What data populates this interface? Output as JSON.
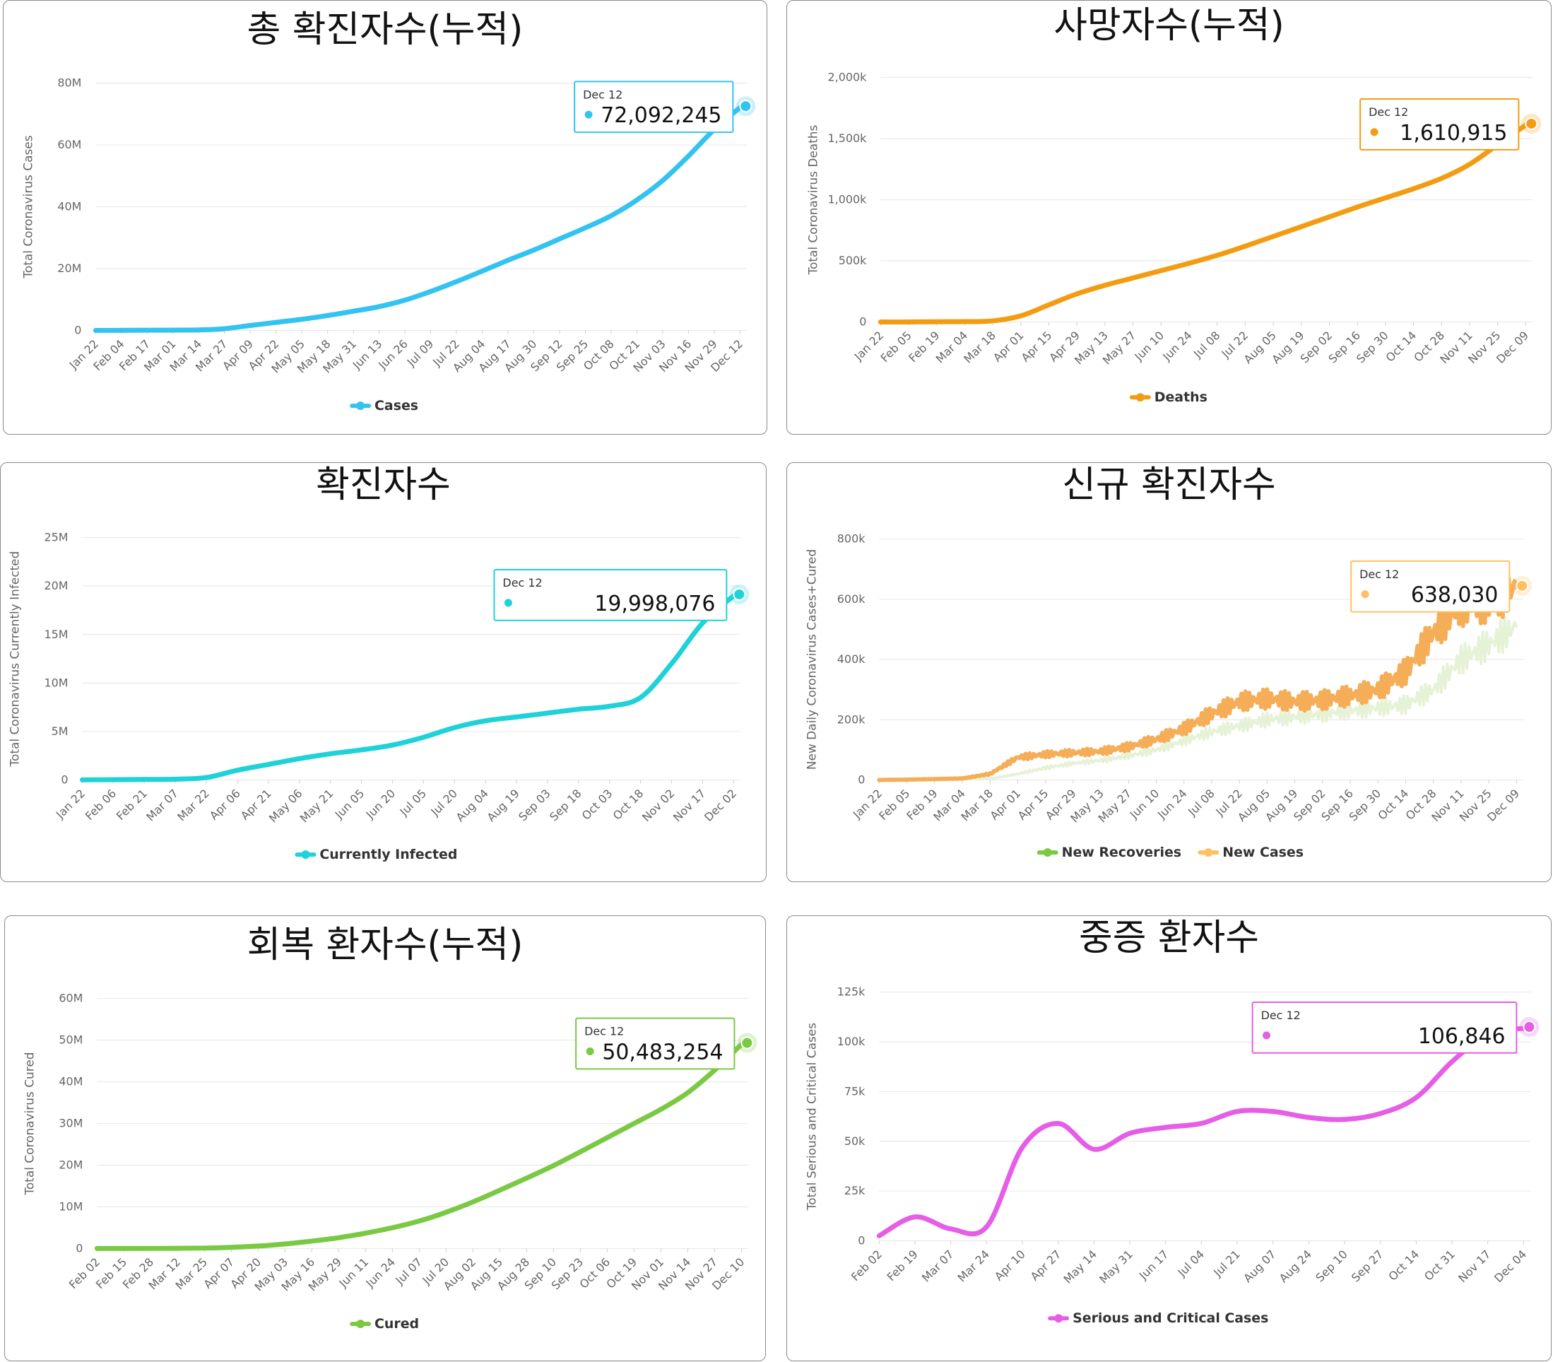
{
  "chart_data": [
    {
      "id": "total-cases",
      "type": "line",
      "title": "총 확진자수(누적)",
      "ylabel": "Total Coronavirus Cases",
      "yticks": [
        "0",
        "20M",
        "40M",
        "60M",
        "80M"
      ],
      "yticks_values": [
        0,
        20000000,
        40000000,
        60000000,
        80000000
      ],
      "ylim": [
        0,
        80000000
      ],
      "xticks": [
        "Jan 22",
        "Feb 04",
        "Feb 17",
        "Mar 01",
        "Mar 14",
        "Mar 27",
        "Apr 09",
        "Apr 22",
        "May 05",
        "May 18",
        "May 31",
        "Jun 13",
        "Jun 26",
        "Jul 09",
        "Jul 22",
        "Aug 04",
        "Aug 17",
        "Aug 30",
        "Sep 12",
        "Sep 25",
        "Oct 08",
        "Oct 21",
        "Nov 03",
        "Nov 16",
        "Nov 29",
        "Dec 12"
      ],
      "series": [
        {
          "name": "Cases",
          "color": "#33c3f0",
          "values": [
            0,
            0.02,
            0.07,
            0.09,
            0.15,
            0.55,
            1.6,
            2.6,
            3.6,
            4.8,
            6.2,
            7.7,
            9.8,
            12.6,
            15.8,
            19.2,
            22.7,
            26.0,
            29.6,
            33.2,
            37.1,
            42.2,
            48.5,
            56.4,
            65.0,
            72.09
          ]
        }
      ],
      "value_unit": 1000000,
      "tooltip": {
        "date": "Dec 12",
        "value": "72,092,245"
      }
    },
    {
      "id": "deaths",
      "type": "line",
      "title": "사망자수(누적)",
      "ylabel": "Total Coronavirus Deaths",
      "yticks": [
        "0",
        "500k",
        "1,000k",
        "1,500k",
        "2,000k"
      ],
      "yticks_values": [
        0,
        500000,
        1000000,
        1500000,
        2000000
      ],
      "ylim": [
        0,
        2000000
      ],
      "xticks": [
        "Jan 22",
        "Feb 05",
        "Feb 19",
        "Mar 04",
        "Mar 18",
        "Apr 01",
        "Apr 15",
        "Apr 29",
        "May 13",
        "May 27",
        "Jun 10",
        "Jun 24",
        "Jul 08",
        "Jul 22",
        "Aug 05",
        "Aug 19",
        "Sep 02",
        "Sep 16",
        "Sep 30",
        "Oct 14",
        "Oct 28",
        "Nov 11",
        "Nov 25",
        "Dec 09"
      ],
      "series": [
        {
          "name": "Deaths",
          "color": "#f39c12",
          "values": [
            0,
            0,
            2,
            3,
            9,
            50,
            140,
            230,
            300,
            360,
            420,
            480,
            545,
            620,
            700,
            780,
            860,
            940,
            1015,
            1090,
            1175,
            1290,
            1450,
            1610.9
          ]
        }
      ],
      "value_unit": 1000,
      "tooltip": {
        "date": "Dec 12",
        "value": "1,610,915"
      }
    },
    {
      "id": "currently-infected",
      "type": "line",
      "title": "확진자수",
      "ylabel": "Total Coronavirus Currently Infected",
      "yticks": [
        "0",
        "5M",
        "10M",
        "15M",
        "20M",
        "25M"
      ],
      "yticks_values": [
        0,
        5000000,
        10000000,
        15000000,
        20000000,
        25000000
      ],
      "ylim": [
        0,
        25000000
      ],
      "xticks": [
        "Jan 22",
        "Feb 06",
        "Feb 21",
        "Mar 07",
        "Mar 22",
        "Apr 06",
        "Apr 21",
        "May 06",
        "May 21",
        "Jun 05",
        "Jun 20",
        "Jul 05",
        "Jul 20",
        "Aug 04",
        "Aug 19",
        "Sep 03",
        "Sep 18",
        "Oct 03",
        "Oct 18",
        "Nov 02",
        "Nov 17",
        "Dec 02"
      ],
      "series": [
        {
          "name": "Currently Infected",
          "color": "#1ed2d8",
          "values": [
            0.01,
            0.03,
            0.05,
            0.08,
            0.25,
            1.0,
            1.6,
            2.2,
            2.7,
            3.1,
            3.6,
            4.4,
            5.4,
            6.1,
            6.5,
            6.9,
            7.3,
            7.6,
            8.5,
            12.0,
            16.2,
            19.0
          ]
        }
      ],
      "value_unit": 1000000,
      "tooltip": {
        "date": "Dec 12",
        "value": "19,998,076"
      }
    },
    {
      "id": "new-daily",
      "type": "line",
      "title": "신규 확진자수",
      "ylabel": "New Daily Coronavirus Cases+Cured",
      "yticks": [
        "0",
        "200k",
        "400k",
        "600k",
        "800k"
      ],
      "yticks_values": [
        0,
        200000,
        400000,
        600000,
        800000
      ],
      "ylim": [
        0,
        800000
      ],
      "xticks": [
        "Jan 22",
        "Feb 05",
        "Feb 19",
        "Mar 04",
        "Mar 18",
        "Apr 01",
        "Apr 15",
        "Apr 29",
        "May 13",
        "May 27",
        "Jun 10",
        "Jun 24",
        "Jul 08",
        "Jul 22",
        "Aug 05",
        "Aug 19",
        "Sep 02",
        "Sep 16",
        "Sep 30",
        "Oct 14",
        "Oct 28",
        "Nov 11",
        "Nov 25",
        "Dec 09"
      ],
      "series": [
        {
          "name": "New Recoveries",
          "color": "#7ac943",
          "line_color": "#e6f2d6",
          "values": [
            0,
            0,
            1,
            2,
            4,
            20,
            40,
            55,
            65,
            80,
            100,
            130,
            160,
            180,
            200,
            210,
            220,
            230,
            240,
            250,
            300,
            400,
            450,
            510
          ]
        },
        {
          "name": "New Cases",
          "color": "#ffc061",
          "line_color": "#f5ad57",
          "values": [
            0,
            1,
            3,
            5,
            20,
            75,
            85,
            90,
            95,
            110,
            135,
            170,
            220,
            260,
            270,
            260,
            265,
            280,
            300,
            360,
            490,
            580,
            590,
            640
          ]
        }
      ],
      "value_unit": 1000,
      "tooltip": {
        "date": "Dec 12",
        "value": "638,030"
      }
    },
    {
      "id": "cured",
      "type": "line",
      "title": "회복 환자수(누적)",
      "ylabel": "Total Coronavirus Cured",
      "yticks": [
        "0",
        "10M",
        "20M",
        "30M",
        "40M",
        "50M",
        "60M"
      ],
      "yticks_values": [
        0,
        10000000,
        20000000,
        30000000,
        40000000,
        50000000,
        60000000
      ],
      "ylim": [
        0,
        60000000
      ],
      "xticks": [
        "Feb 02",
        "Feb 15",
        "Feb 28",
        "Mar 12",
        "Mar 25",
        "Apr 07",
        "Apr 20",
        "May 03",
        "May 16",
        "May 29",
        "Jun 11",
        "Jun 24",
        "Jul 07",
        "Jul 20",
        "Aug 02",
        "Aug 15",
        "Aug 28",
        "Sep 10",
        "Sep 23",
        "Oct 06",
        "Oct 19",
        "Nov 01",
        "Nov 14",
        "Nov 27",
        "Dec 10"
      ],
      "series": [
        {
          "name": "Cured",
          "color": "#7ac943",
          "values": [
            0.01,
            0.02,
            0.04,
            0.07,
            0.12,
            0.3,
            0.6,
            1.1,
            1.8,
            2.6,
            3.7,
            5.0,
            6.6,
            8.7,
            11.2,
            14.0,
            16.9,
            19.9,
            23.2,
            26.6,
            30.0,
            33.4,
            37.4,
            42.8,
            49.0
          ]
        }
      ],
      "value_unit": 1000000,
      "tooltip": {
        "date": "Dec 12",
        "value": "50,483,254"
      }
    },
    {
      "id": "serious-critical",
      "type": "line",
      "title": "중증 환자수",
      "ylabel": "Total Serious and Critical Cases",
      "yticks": [
        "0",
        "25k",
        "50k",
        "75k",
        "100k",
        "125k"
      ],
      "yticks_values": [
        0,
        25000,
        50000,
        75000,
        100000,
        125000
      ],
      "ylim": [
        0,
        125000
      ],
      "xticks": [
        "Feb 02",
        "Feb 19",
        "Mar 07",
        "Mar 24",
        "Apr 10",
        "Apr 27",
        "May 14",
        "May 31",
        "Jun 17",
        "Jul 04",
        "Jul 21",
        "Aug 07",
        "Aug 24",
        "Sep 10",
        "Sep 27",
        "Oct 14",
        "Oct 31",
        "Nov 17",
        "Dec 04"
      ],
      "series": [
        {
          "name": "Serious and Critical Cases",
          "color": "#e55ee5",
          "values": [
            2.5,
            12,
            6,
            7,
            47,
            59,
            46,
            54,
            57,
            59,
            65,
            65,
            62,
            61,
            64,
            72,
            90,
            104,
            106.8
          ]
        }
      ],
      "value_unit": 1000,
      "tooltip": {
        "date": "Dec 12",
        "value": "106,846"
      }
    }
  ]
}
